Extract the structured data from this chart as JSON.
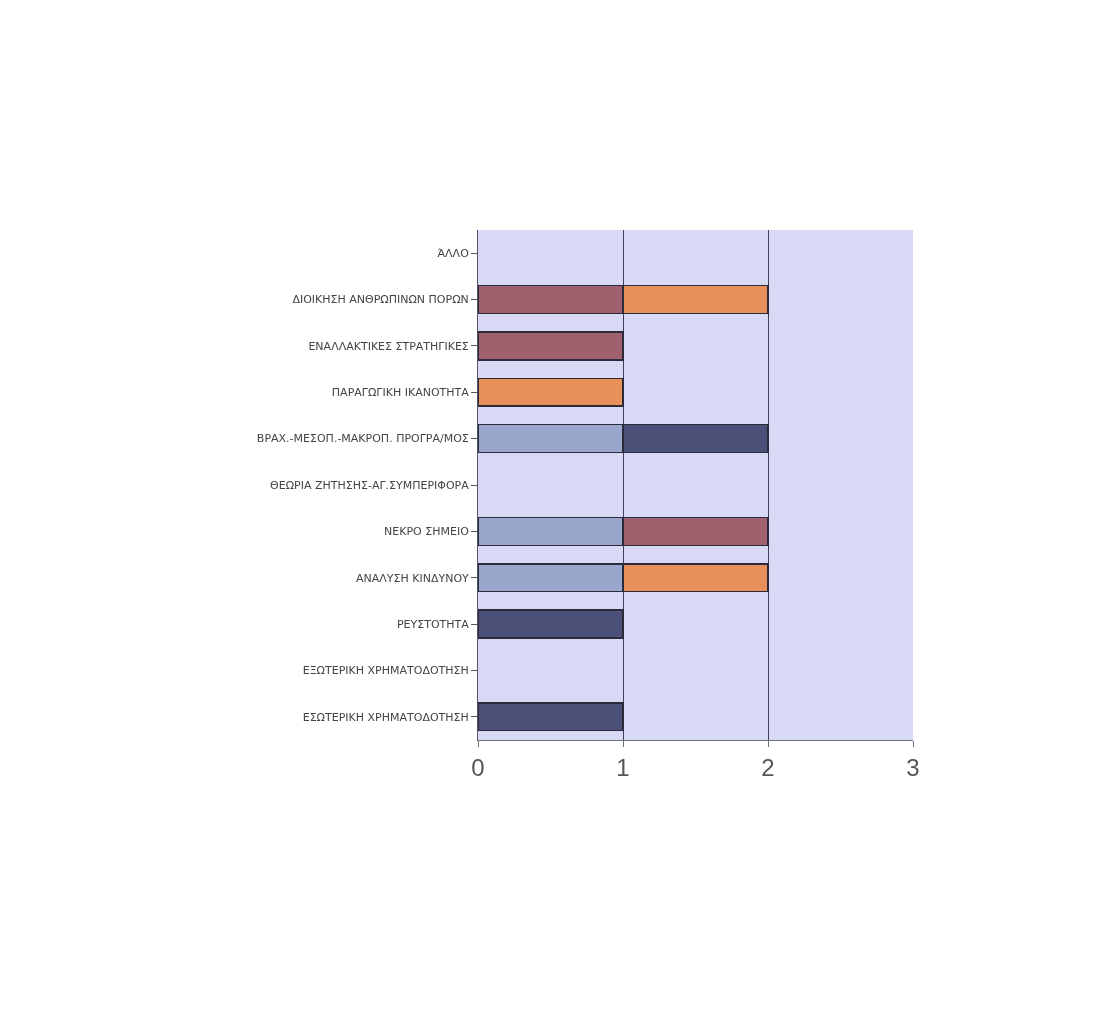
{
  "chart_data": {
    "type": "bar",
    "orientation": "horizontal",
    "stacked": true,
    "categories": [
      "ΆΛΛΟ",
      "ΔΙΟΙΚΗΣΗ ΑΝΘΡΩΠΙΝΩΝ ΠΟΡΩΝ",
      "ΕΝΑΛΛΑΚΤΙΚΕΣ ΣΤΡΑΤΗΓΙΚΕΣ",
      "ΠΑΡΑΓΩΓΙΚΗ ΙΚΑΝΟΤΗΤΑ",
      "ΒΡΑΧ.-ΜΕΣΟΠ.-ΜΑΚΡΟΠ. ΠΡΟΓΡΑ/ΜΟΣ",
      "ΘΕΩΡΙΑ ΖΗΤΗΣΗΣ-ΑΓ.ΣΥΜΠΕΡΙΦΟΡΑ",
      "ΝΕΚΡΟ ΣΗΜΕΙΟ",
      "ΑΝΑΛΥΣΗ ΚΙΝΔΥΝΟΥ",
      "ΡΕΥΣΤΟΤΗΤΑ",
      "ΕΞΩΤΕΡΙΚΗ ΧΡΗΜΑΤΟΔΟΤΗΣΗ",
      "ΕΣΩΤΕΡΙΚΗ ΧΡΗΜΑΤΟΔΟΤΗΣΗ"
    ],
    "series": [
      {
        "color": "#9aa6cc",
        "values": [
          null,
          null,
          null,
          null,
          1,
          null,
          1,
          1,
          null,
          null,
          null
        ]
      },
      {
        "color": "#a0606e",
        "values": [
          null,
          1,
          1,
          null,
          null,
          null,
          1,
          null,
          null,
          null,
          null
        ]
      },
      {
        "color": "#4a5078",
        "values": [
          null,
          null,
          null,
          null,
          1,
          null,
          null,
          null,
          1,
          null,
          1
        ]
      },
      {
        "color": "#e8905a",
        "values": [
          null,
          1,
          null,
          1,
          null,
          null,
          null,
          1,
          null,
          null,
          null
        ]
      }
    ],
    "xlim": [
      0,
      3
    ],
    "xticks": [
      0,
      1,
      2,
      3
    ],
    "grid": "x"
  }
}
